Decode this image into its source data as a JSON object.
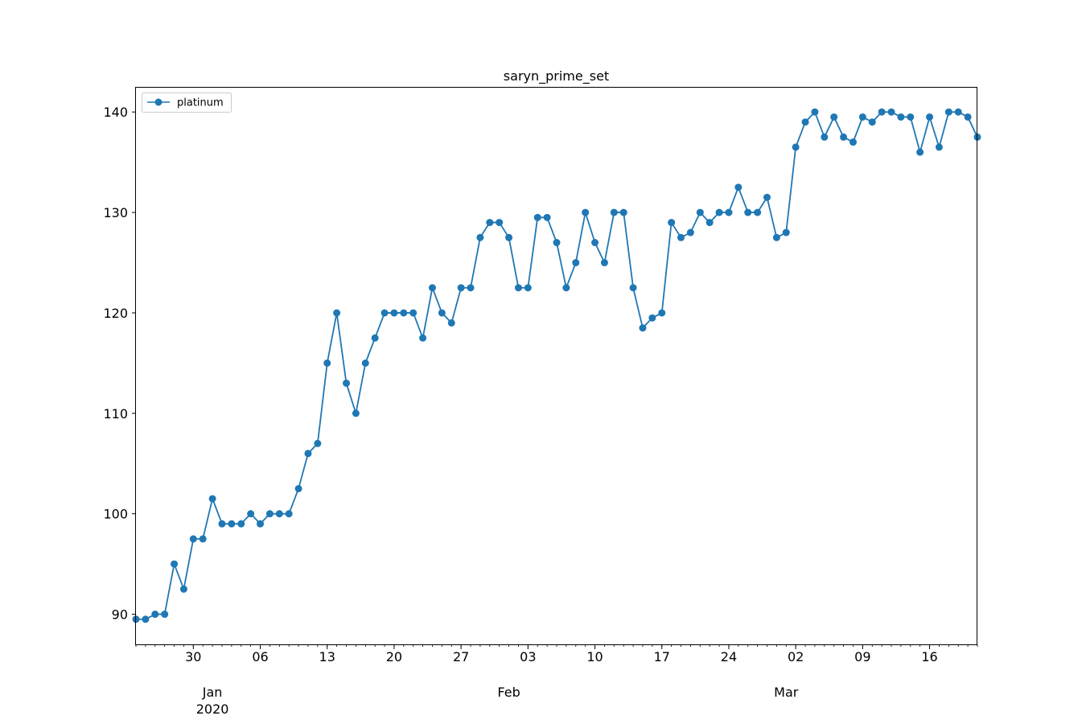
{
  "chart_data": {
    "type": "line",
    "title": "saryn_prime_set",
    "xlabel": "",
    "ylabel": "",
    "legend": {
      "placement": "top-left",
      "entries": [
        "platinum"
      ]
    },
    "grid": false,
    "xlim": [
      "2019-12-24",
      "2020-03-21"
    ],
    "ylim": [
      87,
      142.5
    ],
    "y_ticks": [
      90,
      100,
      110,
      120,
      130,
      140
    ],
    "x_major_ticks": [
      {
        "date": "2019-12-30",
        "label": "30"
      },
      {
        "date": "2020-01-06",
        "label": "06"
      },
      {
        "date": "2020-01-13",
        "label": "13"
      },
      {
        "date": "2020-01-20",
        "label": "20"
      },
      {
        "date": "2020-01-27",
        "label": "27"
      },
      {
        "date": "2020-02-03",
        "label": "03"
      },
      {
        "date": "2020-02-10",
        "label": "10"
      },
      {
        "date": "2020-02-17",
        "label": "17"
      },
      {
        "date": "2020-02-24",
        "label": "24"
      },
      {
        "date": "2020-03-02",
        "label": "02"
      },
      {
        "date": "2020-03-09",
        "label": "09"
      },
      {
        "date": "2020-03-16",
        "label": "16"
      }
    ],
    "x_month_labels": [
      {
        "date": "2020-01-01",
        "label": "Jan",
        "sublabel": "2020"
      },
      {
        "date": "2020-02-01",
        "label": "Feb",
        "sublabel": ""
      },
      {
        "date": "2020-03-01",
        "label": "Mar",
        "sublabel": ""
      }
    ],
    "series": [
      {
        "name": "platinum",
        "color": "#1f77b4",
        "x": [
          "2019-12-24",
          "2019-12-25",
          "2019-12-26",
          "2019-12-27",
          "2019-12-28",
          "2019-12-29",
          "2019-12-30",
          "2019-12-31",
          "2020-01-01",
          "2020-01-02",
          "2020-01-03",
          "2020-01-04",
          "2020-01-05",
          "2020-01-06",
          "2020-01-07",
          "2020-01-08",
          "2020-01-09",
          "2020-01-10",
          "2020-01-11",
          "2020-01-12",
          "2020-01-13",
          "2020-01-14",
          "2020-01-15",
          "2020-01-16",
          "2020-01-17",
          "2020-01-18",
          "2020-01-19",
          "2020-01-20",
          "2020-01-21",
          "2020-01-22",
          "2020-01-23",
          "2020-01-24",
          "2020-01-25",
          "2020-01-26",
          "2020-01-27",
          "2020-01-28",
          "2020-01-29",
          "2020-01-30",
          "2020-01-31",
          "2020-02-01",
          "2020-02-02",
          "2020-02-03",
          "2020-02-04",
          "2020-02-05",
          "2020-02-06",
          "2020-02-07",
          "2020-02-08",
          "2020-02-09",
          "2020-02-10",
          "2020-02-11",
          "2020-02-12",
          "2020-02-13",
          "2020-02-14",
          "2020-02-15",
          "2020-02-16",
          "2020-02-17",
          "2020-02-18",
          "2020-02-19",
          "2020-02-20",
          "2020-02-21",
          "2020-02-22",
          "2020-02-23",
          "2020-02-24",
          "2020-02-25",
          "2020-02-26",
          "2020-02-27",
          "2020-02-28",
          "2020-02-29",
          "2020-03-01",
          "2020-03-02",
          "2020-03-03",
          "2020-03-04",
          "2020-03-05",
          "2020-03-06",
          "2020-03-07",
          "2020-03-08",
          "2020-03-09",
          "2020-03-10",
          "2020-03-11",
          "2020-03-12",
          "2020-03-13",
          "2020-03-14",
          "2020-03-15",
          "2020-03-16",
          "2020-03-17",
          "2020-03-18",
          "2020-03-19",
          "2020-03-20",
          "2020-03-21"
        ],
        "values": [
          89.5,
          89.5,
          90,
          90,
          95,
          92.5,
          97.5,
          97.5,
          101.5,
          99,
          99,
          99,
          100,
          99,
          100,
          100,
          100,
          102.5,
          106,
          107,
          115,
          120,
          113,
          110,
          115,
          117.5,
          120,
          120,
          120,
          120,
          117.5,
          122.5,
          120,
          119,
          122.5,
          122.5,
          127.5,
          129,
          129,
          127.5,
          122.5,
          122.5,
          129.5,
          129.5,
          127,
          122.5,
          125,
          130,
          127,
          125,
          130,
          130,
          122.5,
          118.5,
          119.5,
          120,
          129,
          127.5,
          128,
          130,
          129,
          130,
          130,
          132.5,
          130,
          130,
          131.5,
          127.5,
          128,
          136.5,
          139,
          140,
          137.5,
          139.5,
          137.5,
          137,
          139.5,
          139,
          140,
          140,
          139.5,
          139.5,
          136,
          139.5,
          136.5,
          140,
          140,
          139.5,
          137.5
        ]
      }
    ]
  }
}
